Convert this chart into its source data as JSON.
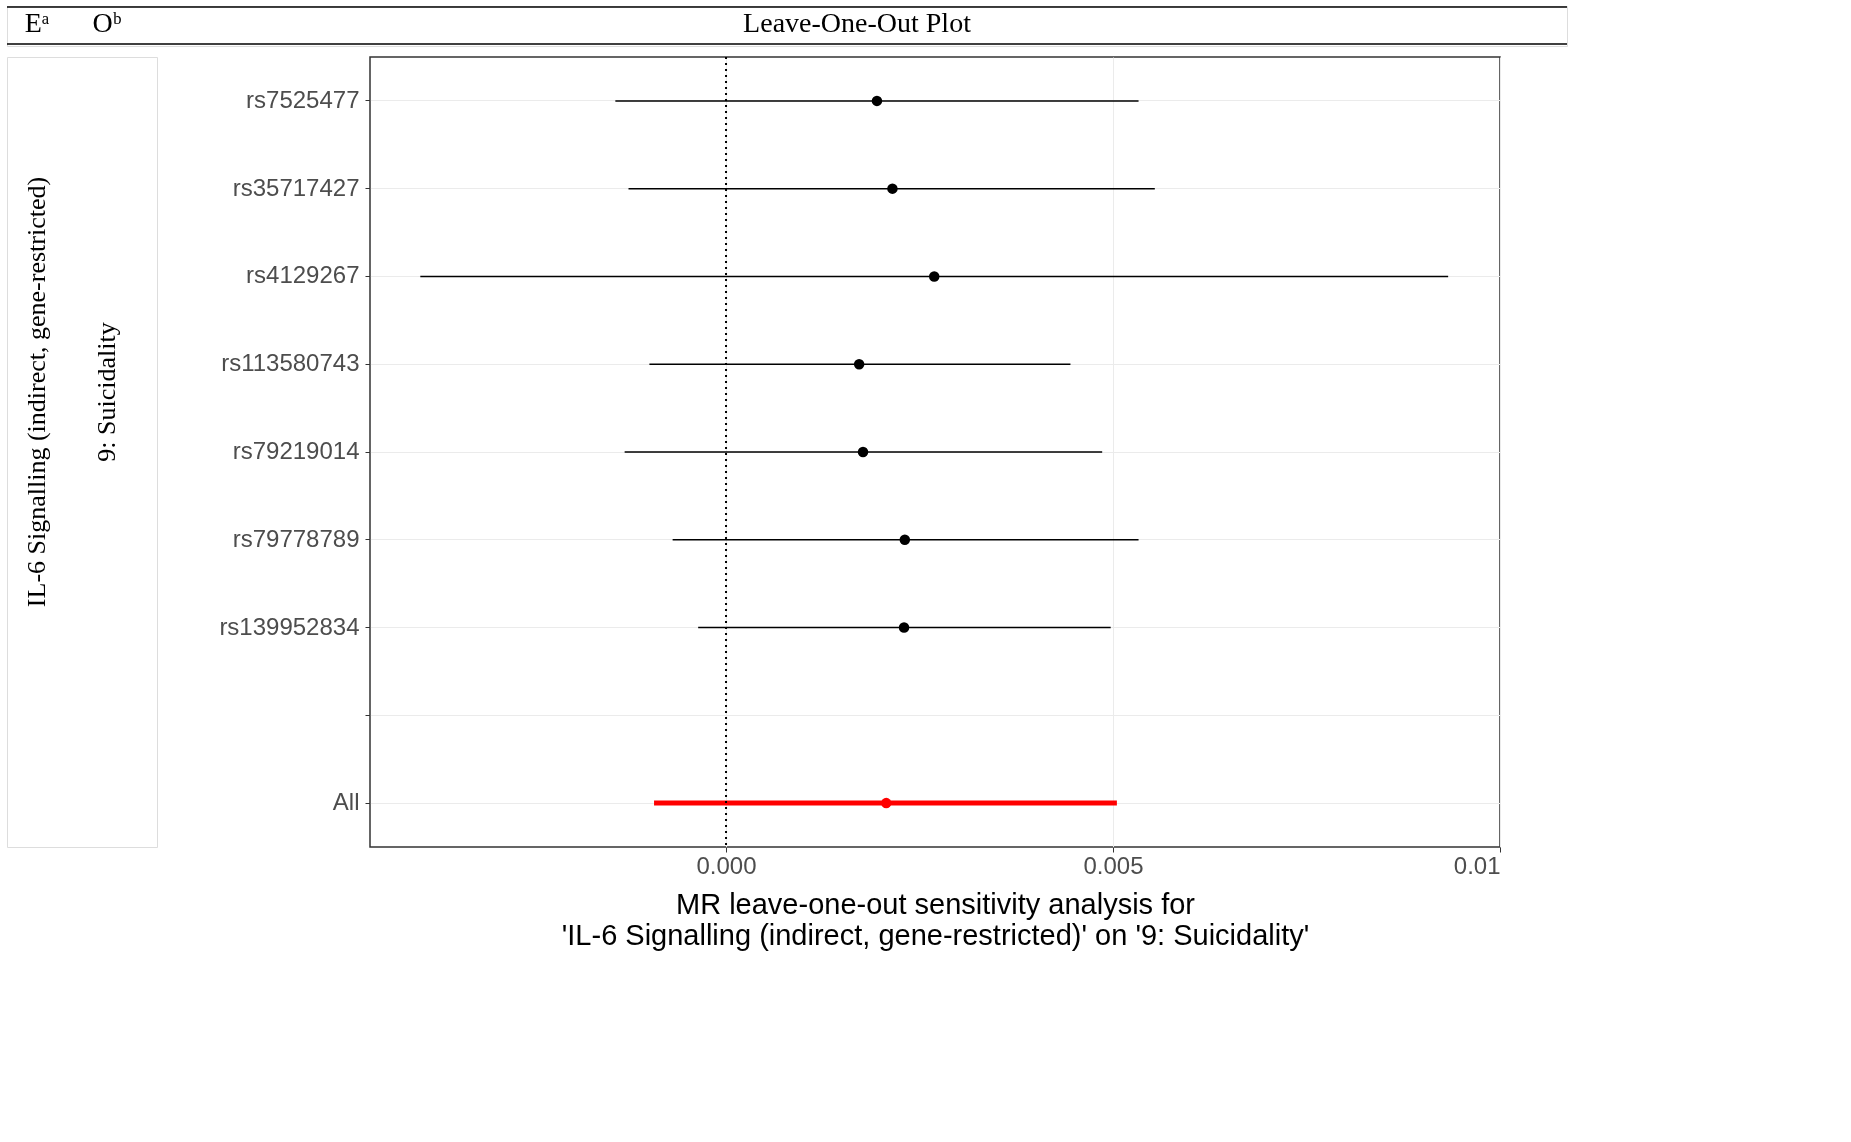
{
  "chart_data": {
    "type": "scatter",
    "title": "Leave-One-Out Plot",
    "annotations": [
      "Eᵃ",
      "Oᵇ",
      "IL-6 Signalling (indirect, gene-restricted)",
      "9: Suicidality"
    ],
    "xlabel": "MR leave-one-out sensitivity analysis for\n'IL-6 Signalling (indirect, gene-restricted)' on '9: Suicidality'",
    "categories": [
      "rs7525477",
      "rs35717427",
      "rs4129267",
      "rs113580743",
      "rs79219014",
      "rs79778789",
      "rs139952834",
      null,
      "All"
    ],
    "series": [
      {
        "color": "#000000",
        "values": [
          0.00195,
          0.00215,
          0.00269,
          0.00172,
          0.00177,
          0.00231,
          0.0023,
          null,
          null
        ],
        "errors": [
          [
            -0.00143,
            0.00533
          ],
          [
            -0.00126,
            0.00554
          ],
          [
            -0.00395,
            0.00933
          ],
          [
            -0.00099,
            0.00445
          ],
          [
            -0.00131,
            0.00486
          ],
          [
            -0.00069,
            0.00533
          ],
          [
            -0.00036,
            0.00497
          ],
          null,
          null
        ]
      },
      {
        "color": "#ff0000",
        "values": [
          null,
          null,
          null,
          null,
          null,
          null,
          null,
          null,
          0.00207
        ],
        "errors": [
          null,
          null,
          null,
          null,
          null,
          null,
          null,
          null,
          [
            -0.00093,
            0.00505
          ]
        ]
      }
    ],
    "orientation": "horizontal",
    "xlim": [
      -0.0046,
      0.01
    ],
    "xticks": [
      {
        "value": 0,
        "label": "0.000"
      },
      {
        "value": 0.005,
        "label": "0.005"
      },
      0.01
    ],
    "ref_lines": [
      {
        "axis": "x",
        "value": 0,
        "line_style": "dotted",
        "color": "#000000"
      }
    ],
    "grid": true,
    "legend": false,
    "marker": "circle"
  }
}
